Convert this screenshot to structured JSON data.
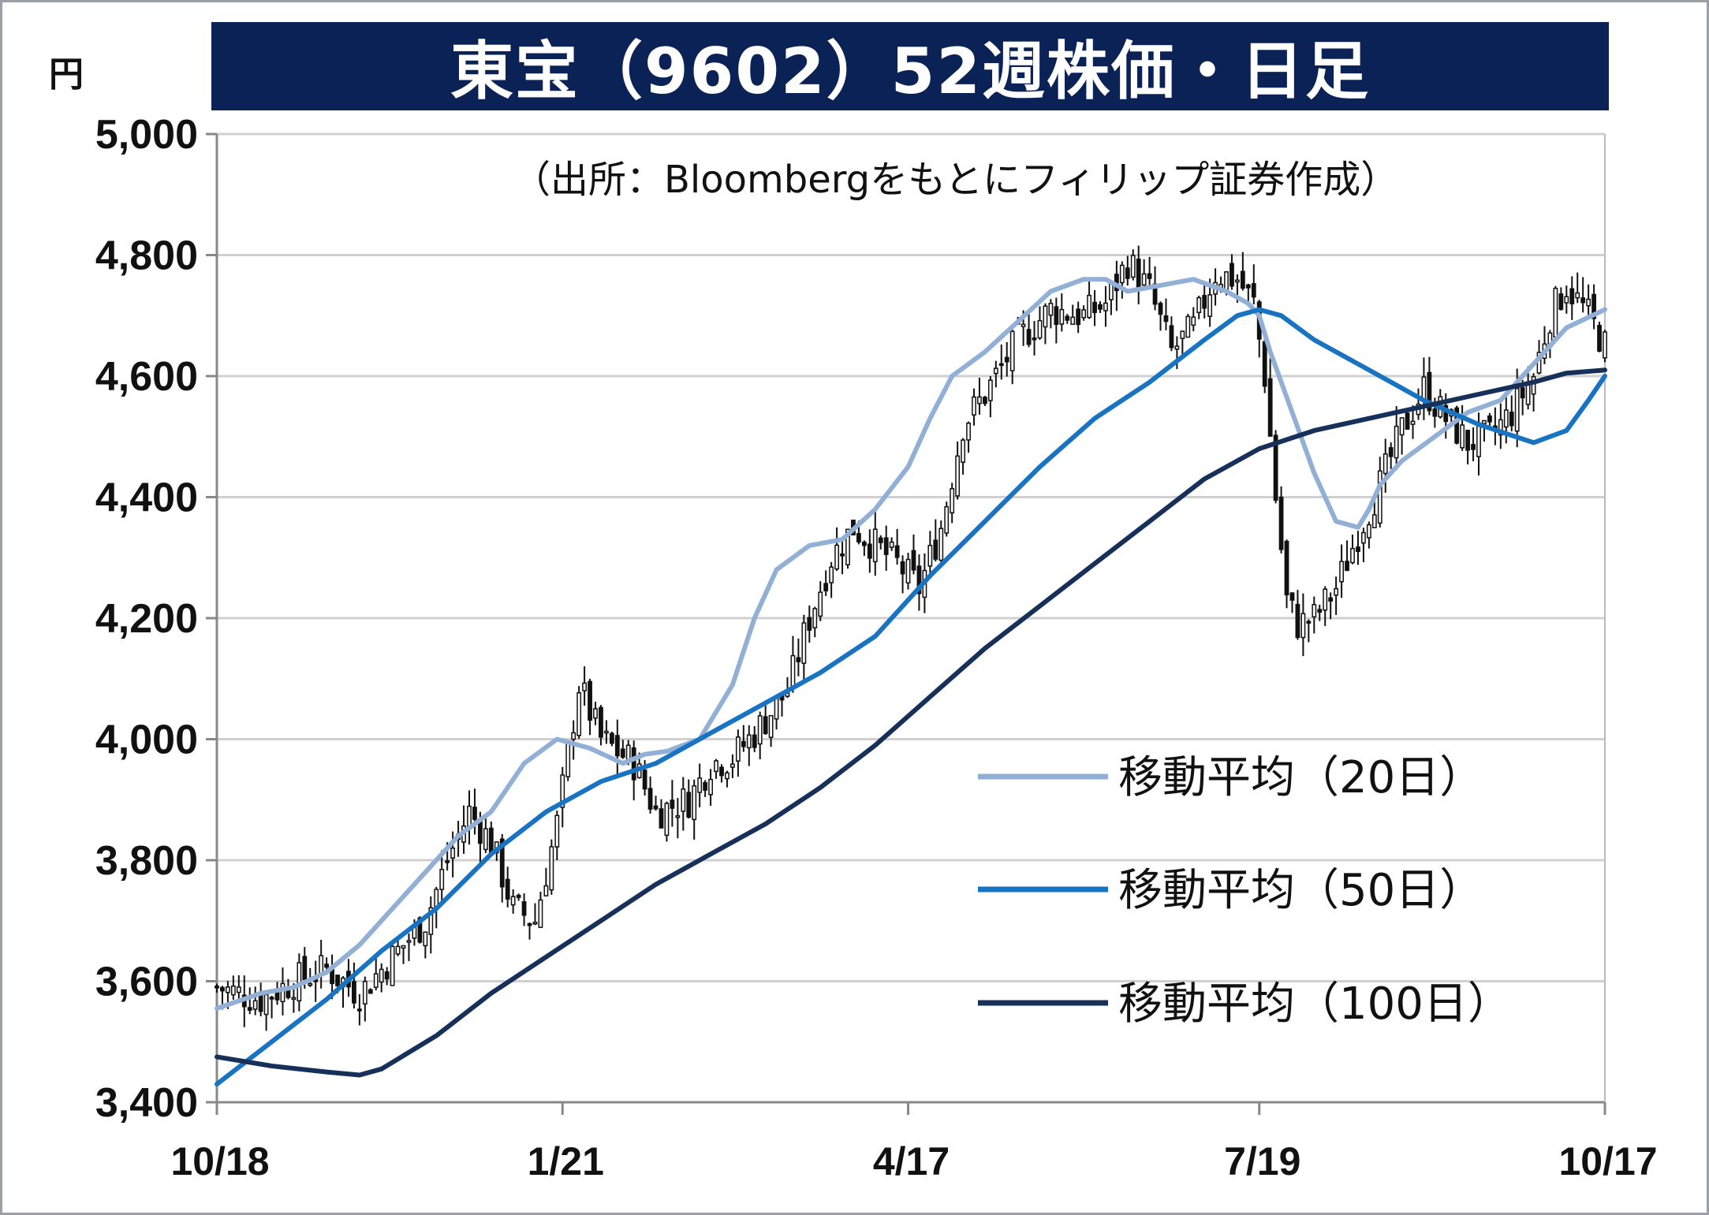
{
  "header": {
    "title": "東宝（9602）52週株価・日足",
    "unit": "円",
    "source": "（出所：Bloombergをもとにフィリップ証券作成）"
  },
  "colors": {
    "title_bg": "#0b2257",
    "ma20": "#92b0d6",
    "ma50": "#1874c3",
    "ma100": "#17305a",
    "candle_outline": "#111111"
  },
  "chart_data": {
    "type": "candlestick",
    "ylim": [
      3400,
      5000
    ],
    "y_ticks": [
      {
        "value": 5000,
        "label": "5,000"
      },
      {
        "value": 4800,
        "label": "4,800"
      },
      {
        "value": 4600,
        "label": "4,600"
      },
      {
        "value": 4400,
        "label": "4,400"
      },
      {
        "value": 4200,
        "label": "4,200"
      },
      {
        "value": 4000,
        "label": "4,000"
      },
      {
        "value": 3800,
        "label": "3,800"
      },
      {
        "value": 3600,
        "label": "3,600"
      },
      {
        "value": 3400,
        "label": "3,400"
      }
    ],
    "x_ticks": [
      {
        "index": 0,
        "label": "10/18"
      },
      {
        "index": 63,
        "label": "1/21"
      },
      {
        "index": 126,
        "label": "4/17"
      },
      {
        "index": 190,
        "label": "7/19"
      },
      {
        "index": 253,
        "label": "10/17"
      }
    ],
    "trading_days": 254,
    "grid": true,
    "legend_position": "right-lower",
    "close_anchors": [
      [
        0,
        3590
      ],
      [
        8,
        3570
      ],
      [
        14,
        3600
      ],
      [
        20,
        3620
      ],
      [
        26,
        3580
      ],
      [
        32,
        3640
      ],
      [
        38,
        3700
      ],
      [
        42,
        3800
      ],
      [
        46,
        3880
      ],
      [
        50,
        3830
      ],
      [
        54,
        3720
      ],
      [
        58,
        3700
      ],
      [
        62,
        3860
      ],
      [
        66,
        4090
      ],
      [
        70,
        4000
      ],
      [
        76,
        3960
      ],
      [
        80,
        3880
      ],
      [
        86,
        3900
      ],
      [
        90,
        3960
      ],
      [
        94,
        3970
      ],
      [
        98,
        4010
      ],
      [
        104,
        4080
      ],
      [
        108,
        4200
      ],
      [
        112,
        4300
      ],
      [
        116,
        4350
      ],
      [
        120,
        4320
      ],
      [
        124,
        4290
      ],
      [
        128,
        4250
      ],
      [
        132,
        4350
      ],
      [
        136,
        4520
      ],
      [
        140,
        4570
      ],
      [
        146,
        4660
      ],
      [
        152,
        4710
      ],
      [
        158,
        4700
      ],
      [
        162,
        4720
      ],
      [
        166,
        4790
      ],
      [
        170,
        4740
      ],
      [
        174,
        4640
      ],
      [
        178,
        4680
      ],
      [
        182,
        4770
      ],
      [
        186,
        4760
      ],
      [
        189,
        4720
      ],
      [
        191,
        4600
      ],
      [
        193,
        4400
      ],
      [
        195,
        4230
      ],
      [
        197,
        4190
      ],
      [
        200,
        4200
      ],
      [
        204,
        4250
      ],
      [
        208,
        4340
      ],
      [
        212,
        4420
      ],
      [
        216,
        4510
      ],
      [
        220,
        4580
      ],
      [
        224,
        4530
      ],
      [
        228,
        4490
      ],
      [
        232,
        4500
      ],
      [
        236,
        4540
      ],
      [
        240,
        4600
      ],
      [
        243,
        4700
      ],
      [
        246,
        4750
      ],
      [
        250,
        4700
      ],
      [
        253,
        4650
      ]
    ],
    "series": [
      {
        "name": "移動平均（20日）",
        "color": "#92b0d6",
        "x": [
          0,
          8,
          14,
          20,
          26,
          32,
          38,
          44,
          50,
          56,
          62,
          68,
          74,
          78,
          82,
          88,
          94,
          98,
          102,
          108,
          114,
          120,
          126,
          130,
          134,
          140,
          146,
          152,
          158,
          162,
          166,
          172,
          178,
          184,
          188,
          190,
          192,
          196,
          200,
          204,
          208,
          210,
          212,
          216,
          222,
          228,
          234,
          240,
          246,
          253
        ],
        "values": [
          3555,
          3580,
          3590,
          3615,
          3660,
          3720,
          3780,
          3840,
          3880,
          3960,
          4000,
          3985,
          3960,
          3975,
          3980,
          4000,
          4090,
          4200,
          4280,
          4320,
          4330,
          4380,
          4450,
          4530,
          4600,
          4640,
          4690,
          4740,
          4760,
          4760,
          4740,
          4750,
          4760,
          4740,
          4720,
          4700,
          4640,
          4540,
          4440,
          4360,
          4350,
          4380,
          4420,
          4460,
          4500,
          4540,
          4560,
          4620,
          4680,
          4710
        ]
      },
      {
        "name": "移動平均（50日）",
        "color": "#1874c3",
        "x": [
          0,
          10,
          20,
          30,
          40,
          50,
          60,
          70,
          80,
          90,
          100,
          110,
          120,
          130,
          140,
          150,
          160,
          170,
          180,
          186,
          190,
          194,
          200,
          210,
          220,
          230,
          240,
          246,
          250,
          253
        ],
        "values": [
          3430,
          3500,
          3570,
          3650,
          3720,
          3810,
          3880,
          3930,
          3960,
          4010,
          4060,
          4110,
          4170,
          4270,
          4360,
          4450,
          4530,
          4590,
          4660,
          4700,
          4710,
          4700,
          4660,
          4610,
          4560,
          4520,
          4490,
          4510,
          4560,
          4600
        ]
      },
      {
        "name": "移動平均（100日）",
        "color": "#17305a",
        "x": [
          0,
          10,
          20,
          26,
          30,
          40,
          50,
          60,
          70,
          80,
          90,
          100,
          110,
          120,
          130,
          140,
          150,
          160,
          170,
          180,
          186,
          190,
          200,
          210,
          220,
          230,
          240,
          246,
          253
        ],
        "values": [
          3475,
          3460,
          3450,
          3445,
          3455,
          3510,
          3580,
          3640,
          3700,
          3760,
          3810,
          3860,
          3920,
          3990,
          4070,
          4150,
          4220,
          4290,
          4360,
          4430,
          4460,
          4480,
          4510,
          4530,
          4550,
          4570,
          4590,
          4605,
          4610
        ]
      }
    ]
  }
}
